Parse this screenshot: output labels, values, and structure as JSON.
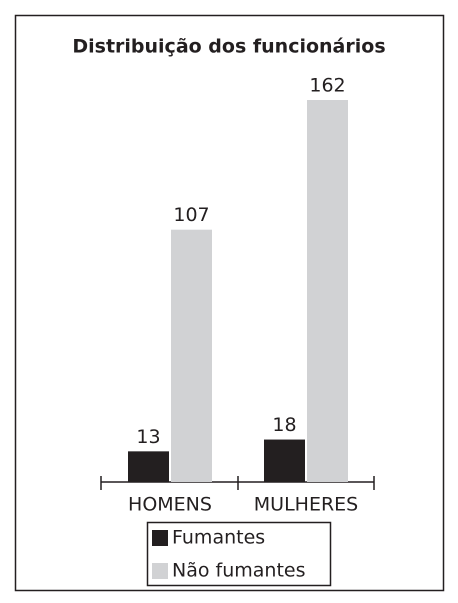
{
  "chart_data": {
    "type": "bar",
    "title": "Distribuição dos funcionários",
    "categories": [
      "HOMENS",
      "MULHERES"
    ],
    "series": [
      {
        "name": "Fumantes",
        "color": "#231f20",
        "values": [
          13,
          18
        ]
      },
      {
        "name": "Não fumantes",
        "color": "#d1d2d4",
        "values": [
          107,
          162
        ]
      }
    ]
  }
}
